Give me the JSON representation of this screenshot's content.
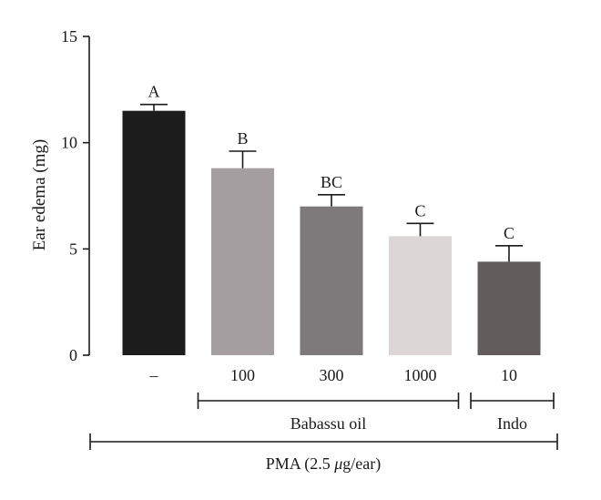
{
  "chart_data": {
    "type": "bar",
    "ylabel": "Ear edema (mg)",
    "ylim": [
      0,
      15
    ],
    "yticks": [
      "0",
      "5",
      "10",
      "15"
    ],
    "grid": false,
    "categories": [
      "–",
      "100",
      "300",
      "1000",
      "10"
    ],
    "values": [
      11.5,
      8.8,
      7.0,
      5.6,
      4.4
    ],
    "errors": [
      0.3,
      0.8,
      0.55,
      0.6,
      0.75
    ],
    "sig_labels": [
      "A",
      "B",
      "BC",
      "C",
      "C"
    ],
    "bar_colors": [
      "#1c1c1c",
      "#a49ea0",
      "#7e7a7b",
      "#dcd6d6",
      "#625d5c"
    ],
    "groups": [
      {
        "label": "Babassu oil",
        "from": 1,
        "to": 3
      },
      {
        "label": "Indo",
        "from": 4,
        "to": 4
      }
    ],
    "super_group": {
      "prefix": "PMA (2.5 ",
      "mu": "μ",
      "suffix": "g/ear)",
      "from": 0,
      "to": 4
    }
  }
}
